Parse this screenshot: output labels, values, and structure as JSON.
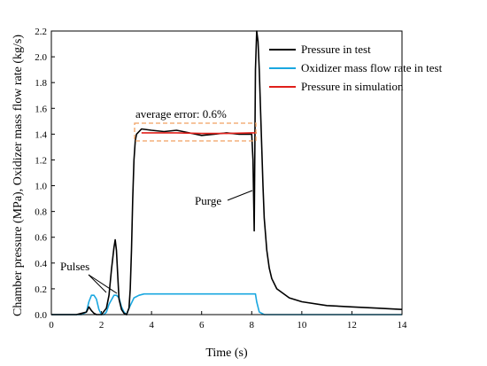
{
  "chart_data": {
    "type": "line",
    "xlabel": "Time (s)",
    "ylabel": "Chamber pressure (MPa), Oxidizer mass flow rate (kg/s)",
    "xlim": [
      0,
      14
    ],
    "ylim": [
      0,
      2.2
    ],
    "xticks": [
      "0",
      "2",
      "4",
      "6",
      "8",
      "10",
      "12",
      "14"
    ],
    "yticks": [
      "0.0",
      "0.2",
      "0.4",
      "0.6",
      "0.8",
      "1.0",
      "1.2",
      "1.4",
      "1.6",
      "1.8",
      "2.0",
      "2.2"
    ],
    "grid": false,
    "legend_position": "top-right",
    "series": [
      {
        "name": "Pressure in test",
        "color": "#000000",
        "x": [
          0,
          1.0,
          1.4,
          1.5,
          1.6,
          1.7,
          1.8,
          2.0,
          2.2,
          2.3,
          2.4,
          2.5,
          2.55,
          2.6,
          2.65,
          2.7,
          2.8,
          2.9,
          3.0,
          3.1,
          3.15,
          3.2,
          3.25,
          3.3,
          3.35,
          3.4,
          3.5,
          3.6,
          4.0,
          4.5,
          5.0,
          5.5,
          6.0,
          6.5,
          7.0,
          7.5,
          8.0,
          8.05,
          8.1,
          8.15,
          8.2,
          8.25,
          8.3,
          8.35,
          8.4,
          8.45,
          8.5,
          8.6,
          8.7,
          8.8,
          9.0,
          9.5,
          10.0,
          11.0,
          12.0,
          13.0,
          14.0
        ],
        "y": [
          0,
          0,
          0.02,
          0.06,
          0.03,
          0.01,
          0,
          0,
          0.05,
          0.15,
          0.35,
          0.52,
          0.58,
          0.5,
          0.3,
          0.12,
          0.04,
          0.01,
          0,
          0.05,
          0.2,
          0.5,
          0.9,
          1.2,
          1.35,
          1.4,
          1.42,
          1.44,
          1.43,
          1.42,
          1.43,
          1.41,
          1.39,
          1.4,
          1.41,
          1.4,
          1.4,
          1.2,
          0.65,
          1.9,
          2.2,
          2.12,
          1.9,
          1.6,
          1.3,
          1.0,
          0.75,
          0.5,
          0.36,
          0.28,
          0.2,
          0.13,
          0.1,
          0.07,
          0.06,
          0.05,
          0.04
        ]
      },
      {
        "name": "Oxidizer mass flow rate in test",
        "color": "#1aa7e0",
        "x": [
          0,
          1.2,
          1.4,
          1.5,
          1.6,
          1.7,
          1.8,
          1.9,
          2.0,
          2.1,
          2.2,
          2.3,
          2.5,
          2.6,
          2.7,
          2.8,
          2.9,
          3.0,
          3.1,
          3.3,
          3.5,
          3.7,
          4.0,
          5.0,
          6.0,
          7.0,
          8.0,
          8.15,
          8.2,
          8.3,
          8.5,
          9.0,
          14.0
        ],
        "y": [
          0,
          0,
          0.02,
          0.1,
          0.15,
          0.15,
          0.12,
          0.04,
          0,
          0,
          0.02,
          0.08,
          0.15,
          0.15,
          0.13,
          0.06,
          0.02,
          0,
          0.05,
          0.13,
          0.15,
          0.16,
          0.16,
          0.16,
          0.16,
          0.16,
          0.16,
          0.16,
          0.1,
          0.02,
          0,
          0,
          0
        ]
      },
      {
        "name": "Pressure in simulation",
        "color": "#e0201b",
        "x": [
          3.6,
          4.0,
          5.0,
          6.0,
          7.0,
          8.0,
          8.2
        ],
        "y": [
          1.41,
          1.41,
          1.41,
          1.405,
          1.405,
          1.41,
          1.41
        ]
      }
    ],
    "annotations": [
      {
        "text": "average error: 0.6%",
        "x": 3.5,
        "y": 1.52
      },
      {
        "text": "Purge",
        "x": 5.8,
        "y": 0.87
      },
      {
        "text": "Pulses",
        "x": 0.4,
        "y": 0.34
      }
    ]
  }
}
